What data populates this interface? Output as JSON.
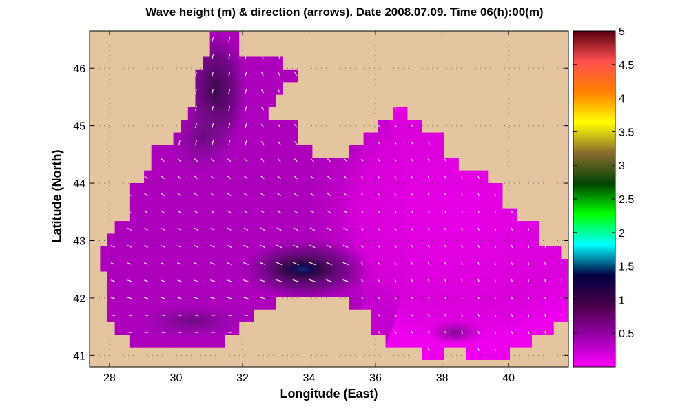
{
  "chart_data": {
    "type": "heatmap",
    "title": "Wave height (m) & direction (arrows). Date 2008.07.09. Time 06(h):00(m)",
    "xlabel": "Longitude (East)",
    "ylabel": "Latitude (North)",
    "xlim": [
      27.4,
      41.8
    ],
    "ylim": [
      40.8,
      46.65
    ],
    "xticks": [
      28,
      30,
      32,
      34,
      36,
      38,
      40
    ],
    "yticks": [
      41,
      42,
      43,
      44,
      45,
      46
    ],
    "grid": true,
    "colorbar": {
      "range": [
        0,
        5
      ],
      "ticks": [
        "0.5",
        "1",
        "1.5",
        "2",
        "2.5",
        "3",
        "3.5",
        "4",
        "4.5",
        "5"
      ],
      "colors": [
        "#ff00ff",
        "#9900aa",
        "#4a004a",
        "#000040",
        "#00ffff",
        "#00ff00",
        "#004400",
        "#8a6a30",
        "#ffff00",
        "#ff8000",
        "#ff5050",
        "#5a0010"
      ]
    },
    "field": {
      "sea_color": "#ee00ee",
      "land_color": "#e4c59f",
      "max_wave_height_m": 1.1,
      "max_at": {
        "lon": 33.8,
        "lat": 42.5
      }
    }
  }
}
